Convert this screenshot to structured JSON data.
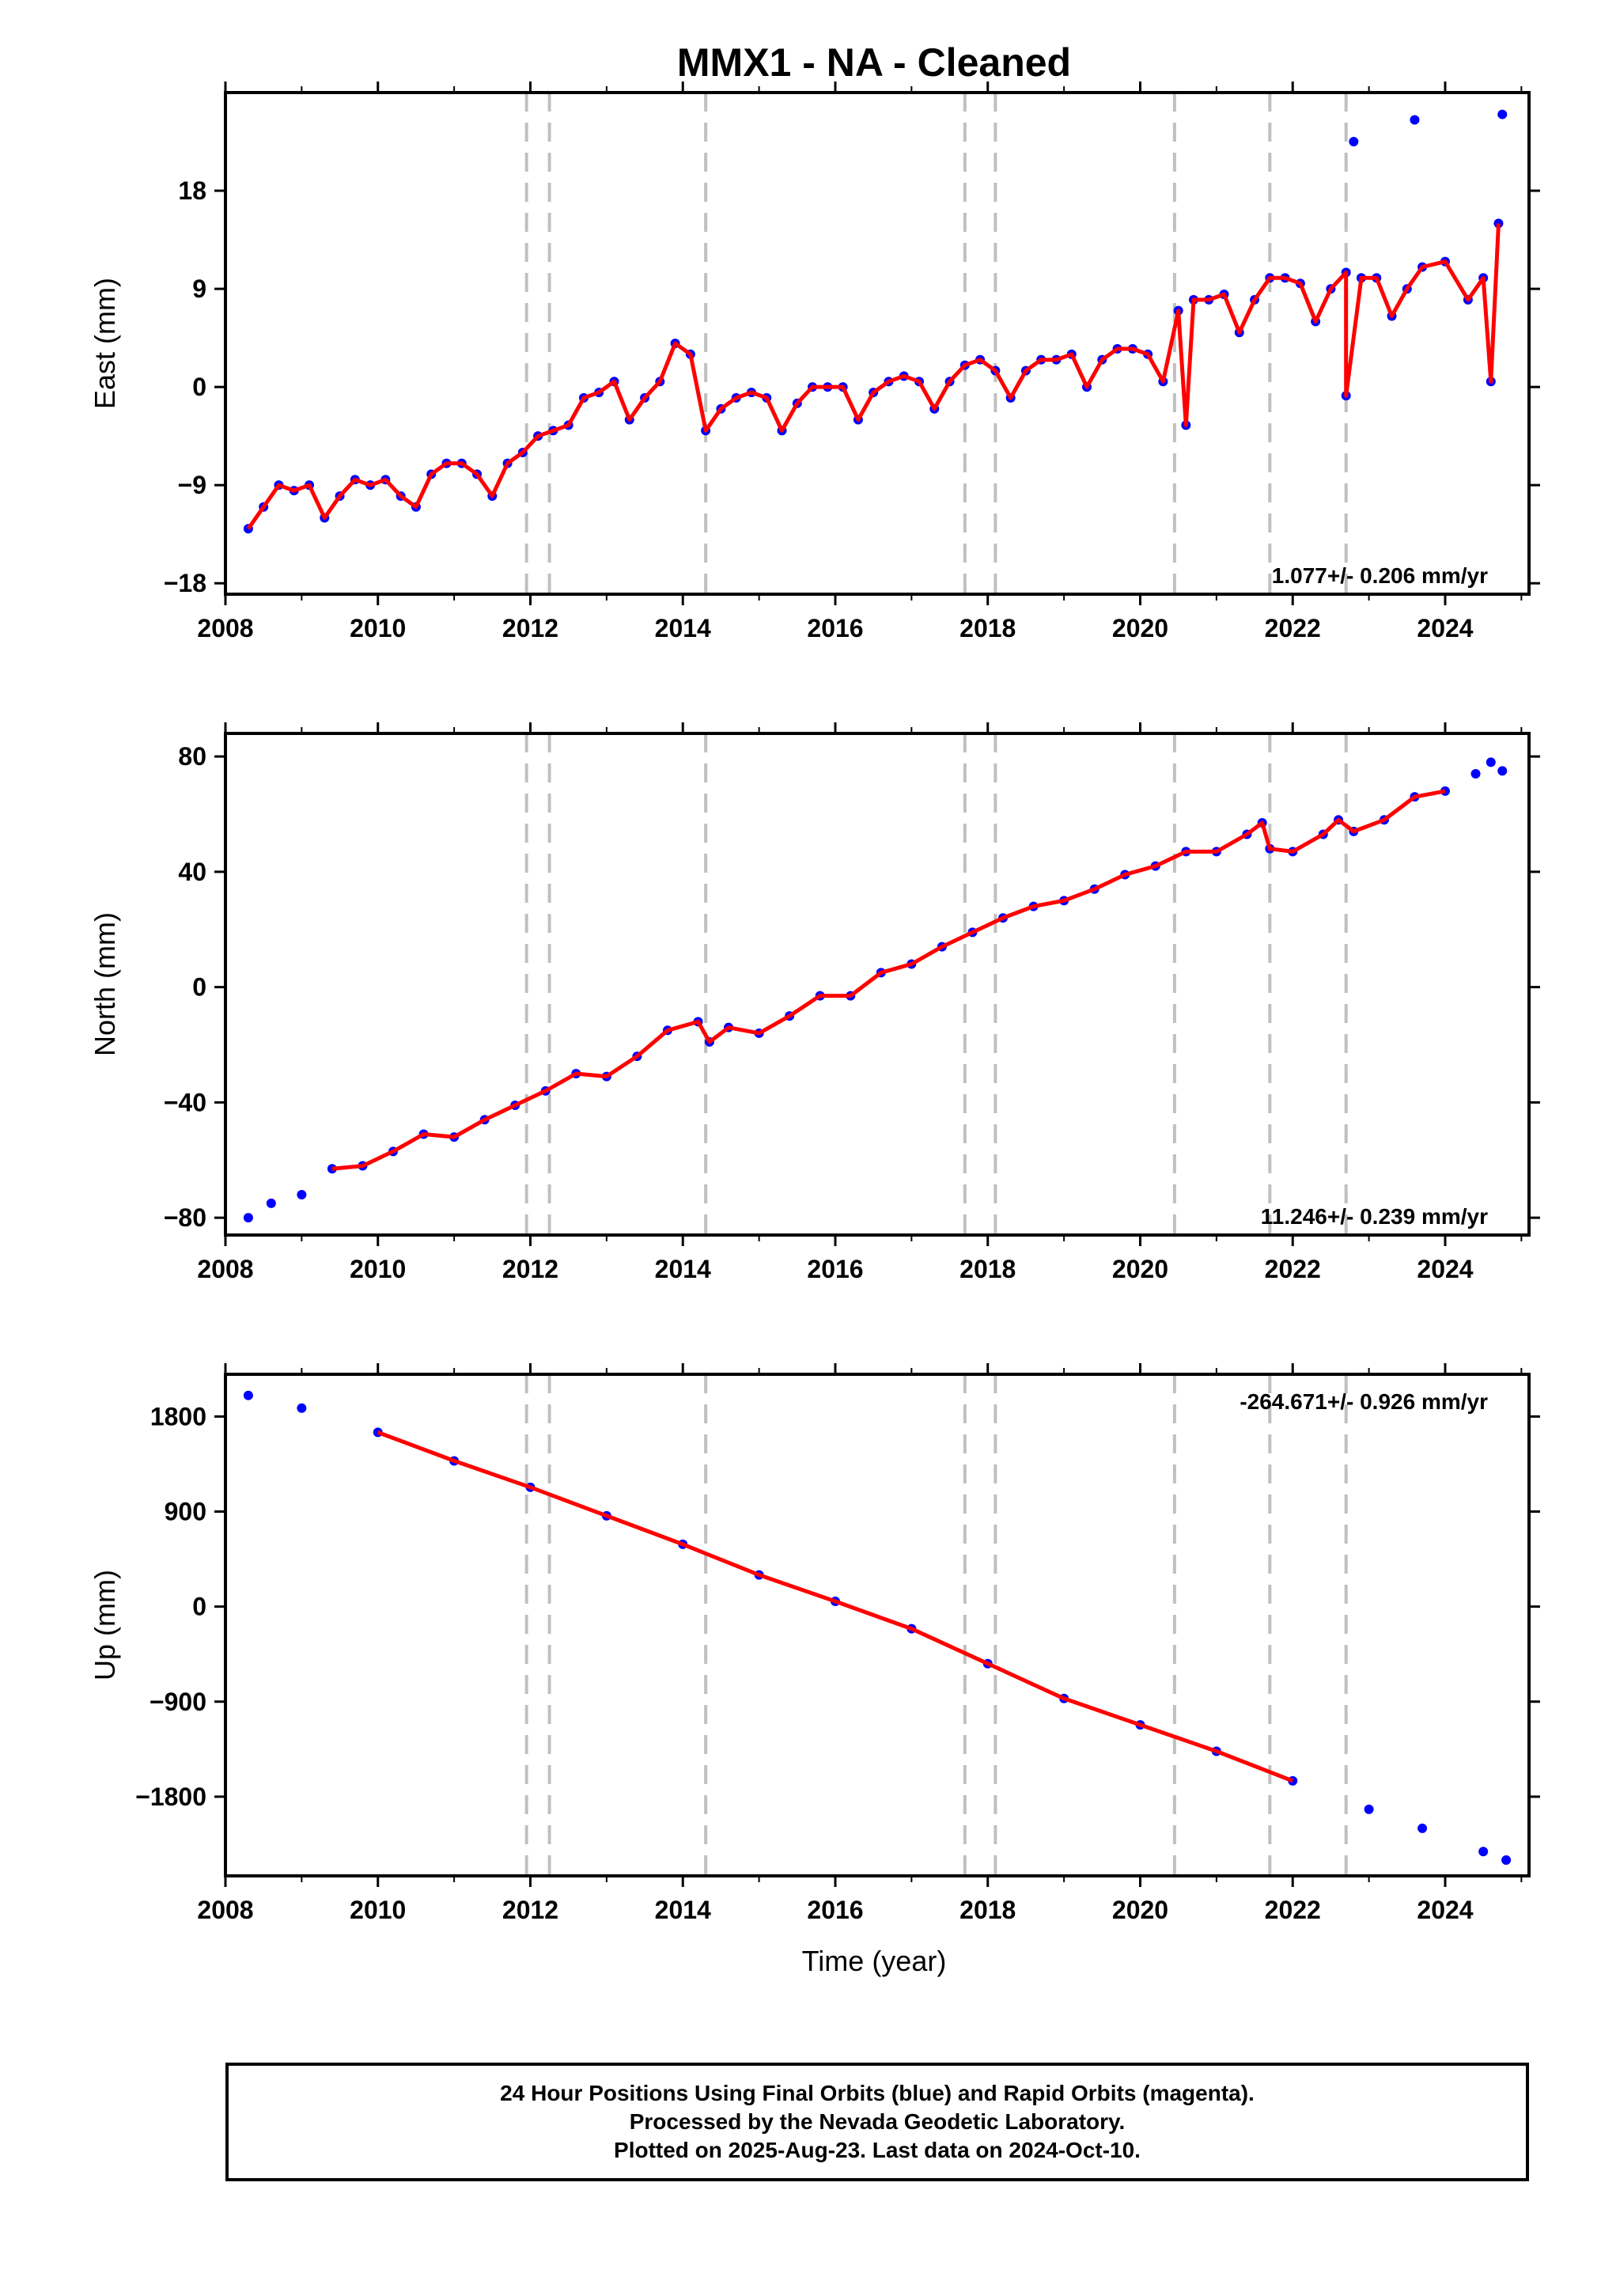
{
  "title": "MMX1  - NA - Cleaned",
  "colors": {
    "points": "#0000ff",
    "fit": "#ff0000",
    "breaks": "#c0c0c0",
    "frame": "#000000"
  },
  "x_axis": {
    "label": "Time (year)",
    "min": 2008.0,
    "max": 2025.1,
    "ticks": [
      2008,
      2010,
      2012,
      2014,
      2016,
      2018,
      2020,
      2022,
      2024
    ]
  },
  "break_lines": [
    2011.95,
    2012.25,
    2014.3,
    2017.7,
    2018.1,
    2020.45,
    2021.7,
    2022.7
  ],
  "chart_data": [
    {
      "type": "scatter",
      "component": "East",
      "ylabel": "East (mm)",
      "ylim": [
        -19,
        27
      ],
      "yticks": [
        -18,
        -9,
        0,
        9,
        18
      ],
      "rate_label": "1.077+/- 0.206 mm/yr",
      "rate_position": "bottom-right",
      "series": [
        {
          "values": [
            [
              2008.3,
              -13
            ],
            [
              2008.5,
              -11
            ],
            [
              2008.7,
              -9
            ],
            [
              2008.9,
              -9.5
            ],
            [
              2009.1,
              -9
            ],
            [
              2009.3,
              -12
            ],
            [
              2009.5,
              -10
            ],
            [
              2009.7,
              -8.5
            ],
            [
              2009.9,
              -9
            ],
            [
              2010.1,
              -8.5
            ],
            [
              2010.3,
              -10
            ],
            [
              2010.5,
              -11
            ],
            [
              2010.7,
              -8
            ],
            [
              2010.9,
              -7
            ],
            [
              2011.1,
              -7
            ],
            [
              2011.3,
              -8
            ],
            [
              2011.5,
              -10
            ],
            [
              2011.7,
              -7
            ],
            [
              2011.9,
              -6
            ],
            [
              2012.1,
              -4.5
            ],
            [
              2012.3,
              -4
            ],
            [
              2012.5,
              -3.5
            ],
            [
              2012.7,
              -1
            ],
            [
              2012.9,
              -0.5
            ],
            [
              2013.1,
              0.5
            ],
            [
              2013.3,
              -3
            ],
            [
              2013.5,
              -1
            ],
            [
              2013.7,
              0.5
            ],
            [
              2013.9,
              4
            ],
            [
              2014.1,
              3
            ],
            [
              2014.3,
              -4
            ],
            [
              2014.5,
              -2
            ],
            [
              2014.7,
              -1
            ],
            [
              2014.9,
              -0.5
            ],
            [
              2015.1,
              -1
            ],
            [
              2015.3,
              -4
            ],
            [
              2015.5,
              -1.5
            ],
            [
              2015.7,
              0
            ],
            [
              2015.9,
              0
            ],
            [
              2016.1,
              0
            ],
            [
              2016.3,
              -3
            ],
            [
              2016.5,
              -0.5
            ],
            [
              2016.7,
              0.5
            ],
            [
              2016.9,
              1
            ],
            [
              2017.1,
              0.5
            ],
            [
              2017.3,
              -2
            ],
            [
              2017.5,
              0.5
            ],
            [
              2017.7,
              2
            ],
            [
              2017.9,
              2.5
            ],
            [
              2018.1,
              1.5
            ],
            [
              2018.3,
              -1
            ],
            [
              2018.5,
              1.5
            ],
            [
              2018.7,
              2.5
            ],
            [
              2018.9,
              2.5
            ],
            [
              2019.1,
              3
            ],
            [
              2019.3,
              0
            ],
            [
              2019.5,
              2.5
            ],
            [
              2019.7,
              3.5
            ],
            [
              2019.9,
              3.5
            ],
            [
              2020.1,
              3
            ],
            [
              2020.3,
              0.5
            ],
            [
              2020.5,
              7
            ],
            [
              2020.7,
              8
            ],
            [
              2020.9,
              8
            ],
            [
              2021.1,
              8.5
            ],
            [
              2021.3,
              5
            ],
            [
              2021.5,
              8
            ],
            [
              2021.7,
              10
            ],
            [
              2021.9,
              10
            ],
            [
              2022.1,
              9.5
            ],
            [
              2022.3,
              6
            ],
            [
              2022.5,
              9
            ],
            [
              2022.7,
              10.5
            ],
            [
              2022.9,
              10
            ],
            [
              2023.1,
              10
            ],
            [
              2023.3,
              6.5
            ],
            [
              2023.5,
              9
            ],
            [
              2023.7,
              11
            ],
            [
              2024.0,
              11.5
            ],
            [
              2024.3,
              8
            ],
            [
              2024.5,
              10
            ],
            [
              2024.7,
              15
            ],
            [
              2024.75,
              25
            ],
            [
              2022.8,
              22.5
            ],
            [
              2023.6,
              24.5
            ],
            [
              2024.6,
              0.5
            ],
            [
              2022.7,
              -0.8
            ],
            [
              2020.6,
              -3.5
            ]
          ]
        }
      ]
    },
    {
      "type": "scatter",
      "component": "North",
      "ylabel": "North (mm)",
      "ylim": [
        -86,
        88
      ],
      "yticks": [
        -80,
        -40,
        0,
        40,
        80
      ],
      "rate_label": "11.246+/- 0.239 mm/yr",
      "rate_position": "bottom-right",
      "series": [
        {
          "values": [
            [
              2008.3,
              -80
            ],
            [
              2008.6,
              -75
            ],
            [
              2009.0,
              -72
            ],
            [
              2009.4,
              -63
            ],
            [
              2009.8,
              -62
            ],
            [
              2010.2,
              -57
            ],
            [
              2010.6,
              -51
            ],
            [
              2011.0,
              -52
            ],
            [
              2011.4,
              -46
            ],
            [
              2011.8,
              -41
            ],
            [
              2012.2,
              -36
            ],
            [
              2012.6,
              -30
            ],
            [
              2013.0,
              -31
            ],
            [
              2013.4,
              -24
            ],
            [
              2013.8,
              -15
            ],
            [
              2014.2,
              -12
            ],
            [
              2014.35,
              -19
            ],
            [
              2014.6,
              -14
            ],
            [
              2015.0,
              -16
            ],
            [
              2015.4,
              -10
            ],
            [
              2015.8,
              -3
            ],
            [
              2016.2,
              -3
            ],
            [
              2016.6,
              5
            ],
            [
              2017.0,
              8
            ],
            [
              2017.4,
              14
            ],
            [
              2017.8,
              19
            ],
            [
              2018.2,
              24
            ],
            [
              2018.6,
              28
            ],
            [
              2019.0,
              30
            ],
            [
              2019.4,
              34
            ],
            [
              2019.8,
              39
            ],
            [
              2020.2,
              42
            ],
            [
              2020.6,
              47
            ],
            [
              2021.0,
              47
            ],
            [
              2021.4,
              53
            ],
            [
              2021.6,
              57
            ],
            [
              2021.7,
              48
            ],
            [
              2022.0,
              47
            ],
            [
              2022.4,
              53
            ],
            [
              2022.6,
              58
            ],
            [
              2022.8,
              54
            ],
            [
              2023.2,
              58
            ],
            [
              2023.6,
              66
            ],
            [
              2024.0,
              68
            ],
            [
              2024.4,
              74
            ],
            [
              2024.6,
              78
            ],
            [
              2024.75,
              75
            ]
          ]
        }
      ]
    },
    {
      "type": "scatter",
      "component": "Up",
      "ylabel": "Up (mm)",
      "ylim": [
        -2550,
        2200
      ],
      "yticks": [
        -1800,
        -900,
        0,
        900,
        1800
      ],
      "rate_label": "-264.671+/- 0.926 mm/yr",
      "rate_position": "top-right",
      "series": [
        {
          "values": [
            [
              2008.3,
              2000
            ],
            [
              2009.0,
              1880
            ],
            [
              2010.0,
              1650
            ],
            [
              2011.0,
              1380
            ],
            [
              2012.0,
              1130
            ],
            [
              2013.0,
              860
            ],
            [
              2014.0,
              590
            ],
            [
              2015.0,
              300
            ],
            [
              2016.0,
              50
            ],
            [
              2017.0,
              -210
            ],
            [
              2018.0,
              -540
            ],
            [
              2019.0,
              -870
            ],
            [
              2020.0,
              -1120
            ],
            [
              2021.0,
              -1370
            ],
            [
              2022.0,
              -1650
            ],
            [
              2023.0,
              -1920
            ],
            [
              2023.7,
              -2100
            ],
            [
              2024.5,
              -2320
            ],
            [
              2024.8,
              -2400
            ]
          ]
        }
      ]
    }
  ],
  "footer": {
    "line1": "24 Hour Positions Using Final Orbits (blue) and Rapid Orbits (magenta).",
    "line2": "Processed by the Nevada Geodetic Laboratory.",
    "line3": "Plotted on 2025-Aug-23. Last data on 2024-Oct-10."
  }
}
